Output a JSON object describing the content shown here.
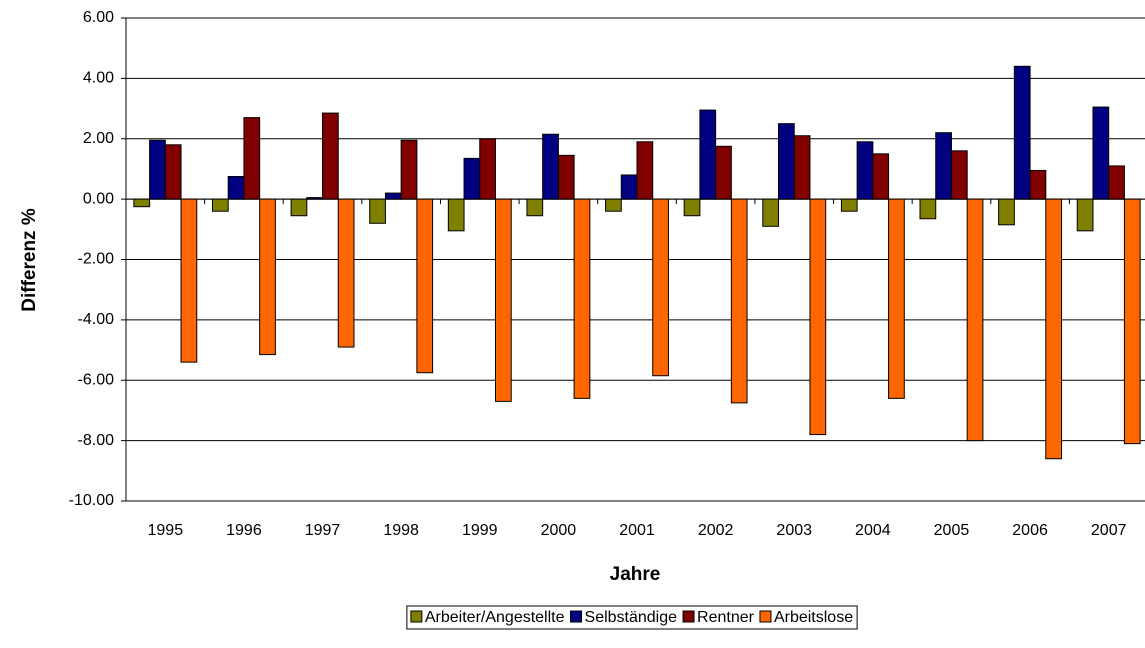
{
  "chart_data": {
    "type": "bar",
    "x_label": "Jahre",
    "y_label": "Differenz %",
    "categories": [
      "1995",
      "1996",
      "1997",
      "1998",
      "1999",
      "2000",
      "2001",
      "2002",
      "2003",
      "2004",
      "2005",
      "2006",
      "2007"
    ],
    "series": [
      {
        "name": "Arbeiter/Angestellte",
        "color": "#808000",
        "values": [
          -0.25,
          -0.4,
          -0.55,
          -0.8,
          -1.05,
          -0.55,
          -0.4,
          -0.55,
          -0.9,
          -0.4,
          -0.65,
          -0.85,
          -1.05
        ]
      },
      {
        "name": "Selbständige",
        "color": "#000080",
        "values": [
          1.95,
          0.75,
          0.05,
          0.2,
          1.35,
          2.15,
          0.8,
          2.95,
          2.5,
          1.9,
          2.2,
          4.4,
          3.05
        ]
      },
      {
        "name": "Rentner",
        "color": "#800000",
        "values": [
          1.8,
          2.7,
          2.85,
          1.95,
          2.0,
          1.45,
          1.9,
          1.75,
          2.1,
          1.5,
          1.6,
          0.95,
          1.1
        ]
      },
      {
        "name": "Arbeitslose",
        "color": "#ff6600",
        "values": [
          -5.4,
          -5.15,
          -4.9,
          -5.75,
          -6.7,
          -6.6,
          -5.85,
          -6.75,
          -7.8,
          -6.6,
          -8.0,
          -8.6,
          -8.1
        ]
      }
    ],
    "ylim": [
      -10,
      6
    ],
    "yticks": [
      {
        "value": -10,
        "label": "-10.00"
      },
      {
        "value": -8,
        "label": "-8.00"
      },
      {
        "value": -6,
        "label": "-6.00"
      },
      {
        "value": -4,
        "label": "-4.00"
      },
      {
        "value": -2,
        "label": "-2.00"
      },
      {
        "value": 0,
        "label": "0.00"
      },
      {
        "value": 2,
        "label": "2.00"
      },
      {
        "value": 4,
        "label": "4.00"
      },
      {
        "value": 6,
        "label": "6.00"
      }
    ],
    "grid": true,
    "legend": "bottom"
  }
}
